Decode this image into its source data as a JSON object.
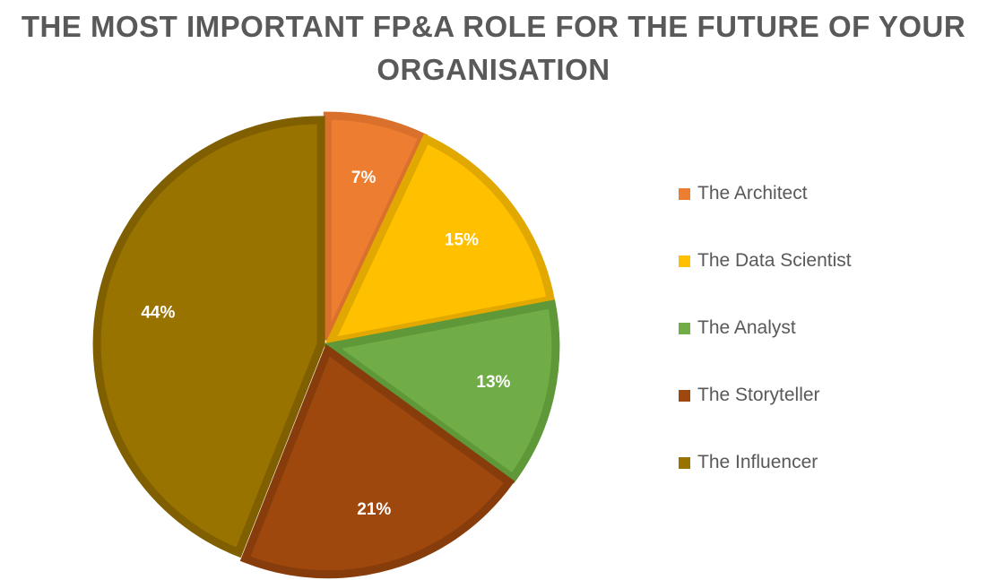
{
  "chart_data": {
    "type": "pie",
    "title_lines": [
      "THE MOST IMPORTANT FP&A ROLE FOR THE FUTURE OF YOUR",
      "ORGANISATION"
    ],
    "categories": [
      "The Architect",
      "The Data Scientist",
      "The Analyst",
      "The Storyteller",
      "The Influencer"
    ],
    "values": [
      7,
      15,
      13,
      21,
      44
    ],
    "data_labels": [
      "7%",
      "15%",
      "13%",
      "21%",
      "44%"
    ],
    "colors": [
      "#ED7D31",
      "#FFC000",
      "#70AD47",
      "#9E480E",
      "#997300"
    ],
    "border_colors": [
      "#D9702C",
      "#E0A800",
      "#5E9838",
      "#873C0B",
      "#7F5F00"
    ],
    "legend_position": "right",
    "start_angle": "12 o'clock, clockwise",
    "exploded": true
  }
}
